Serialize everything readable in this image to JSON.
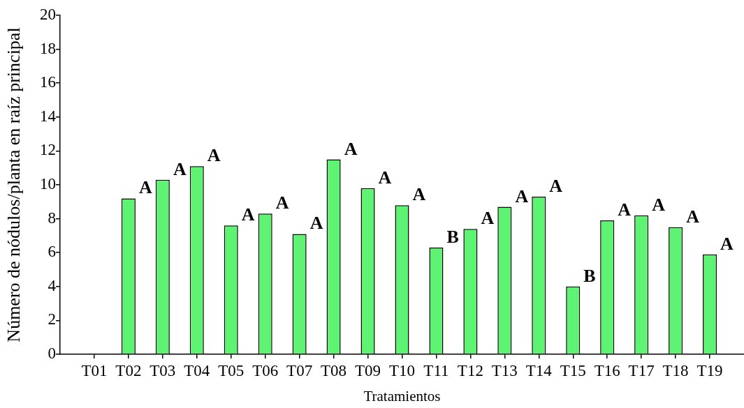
{
  "chart_data": {
    "type": "bar",
    "xlabel": "Tratamientos",
    "ylabel": "Número de nódulos/planta en raíz principal",
    "categories": [
      "T01",
      "T02",
      "T03",
      "T04",
      "T05",
      "T06",
      "T07",
      "T08",
      "T09",
      "T10",
      "T11",
      "T12",
      "T13",
      "T14",
      "T15",
      "T16",
      "T17",
      "T18",
      "T19"
    ],
    "values": [
      0,
      9.2,
      10.3,
      11.1,
      7.6,
      8.3,
      7.1,
      11.5,
      9.8,
      8.8,
      6.3,
      7.4,
      8.7,
      9.3,
      4.0,
      7.9,
      8.2,
      7.5,
      5.9
    ],
    "value_labels": [
      null,
      "A",
      "A",
      "A",
      "A",
      "A",
      "A",
      "A",
      "A",
      "A",
      "B",
      "A",
      "A",
      "A",
      "B",
      "A",
      "A",
      "A",
      "A"
    ],
    "color": "#5ff374",
    "ylim": [
      0,
      20
    ],
    "yticks": [
      0,
      2,
      4,
      6,
      8,
      10,
      12,
      14,
      16,
      18,
      20
    ]
  }
}
